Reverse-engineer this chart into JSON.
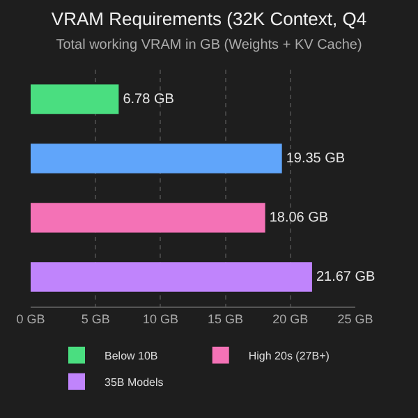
{
  "chart_data": {
    "type": "bar",
    "orientation": "horizontal",
    "title": "VRAM Requirements (32K Context, Q4",
    "subtitle": "Total working VRAM in GB (Weights + KV Cache)",
    "categories": [
      null,
      null,
      null,
      null
    ],
    "series": [
      {
        "name": "Below 10B",
        "color": "#4ade80",
        "values": [
          6.78,
          null,
          null,
          null
        ],
        "value_labels": [
          "6.78 GB",
          null,
          null,
          null
        ]
      },
      {
        "color": "#60a5fa",
        "values": [
          null,
          19.35,
          null,
          null
        ],
        "value_labels": [
          null,
          "19.35 GB",
          null,
          null
        ]
      },
      {
        "name": "High 20s (27B+)",
        "color": "#f472b6",
        "values": [
          null,
          null,
          18.06,
          null
        ],
        "value_labels": [
          null,
          null,
          "18.06 GB",
          null
        ]
      },
      {
        "name": "35B Models",
        "color": "#c084fc",
        "values": [
          null,
          null,
          null,
          21.67
        ],
        "value_labels": [
          null,
          null,
          null,
          "21.67 GB"
        ]
      }
    ],
    "xlim": [
      0,
      25
    ],
    "xticks": [
      {
        "value": 0,
        "label": "0 GB"
      },
      {
        "value": 5,
        "label": "5 GB"
      },
      {
        "value": 10,
        "label": "10 GB"
      },
      {
        "value": 15,
        "label": "15 GB"
      },
      {
        "value": 20,
        "label": "20 GB"
      },
      {
        "value": 25,
        "label": "25 GB"
      }
    ],
    "grid": "x",
    "legend": "bottom"
  }
}
